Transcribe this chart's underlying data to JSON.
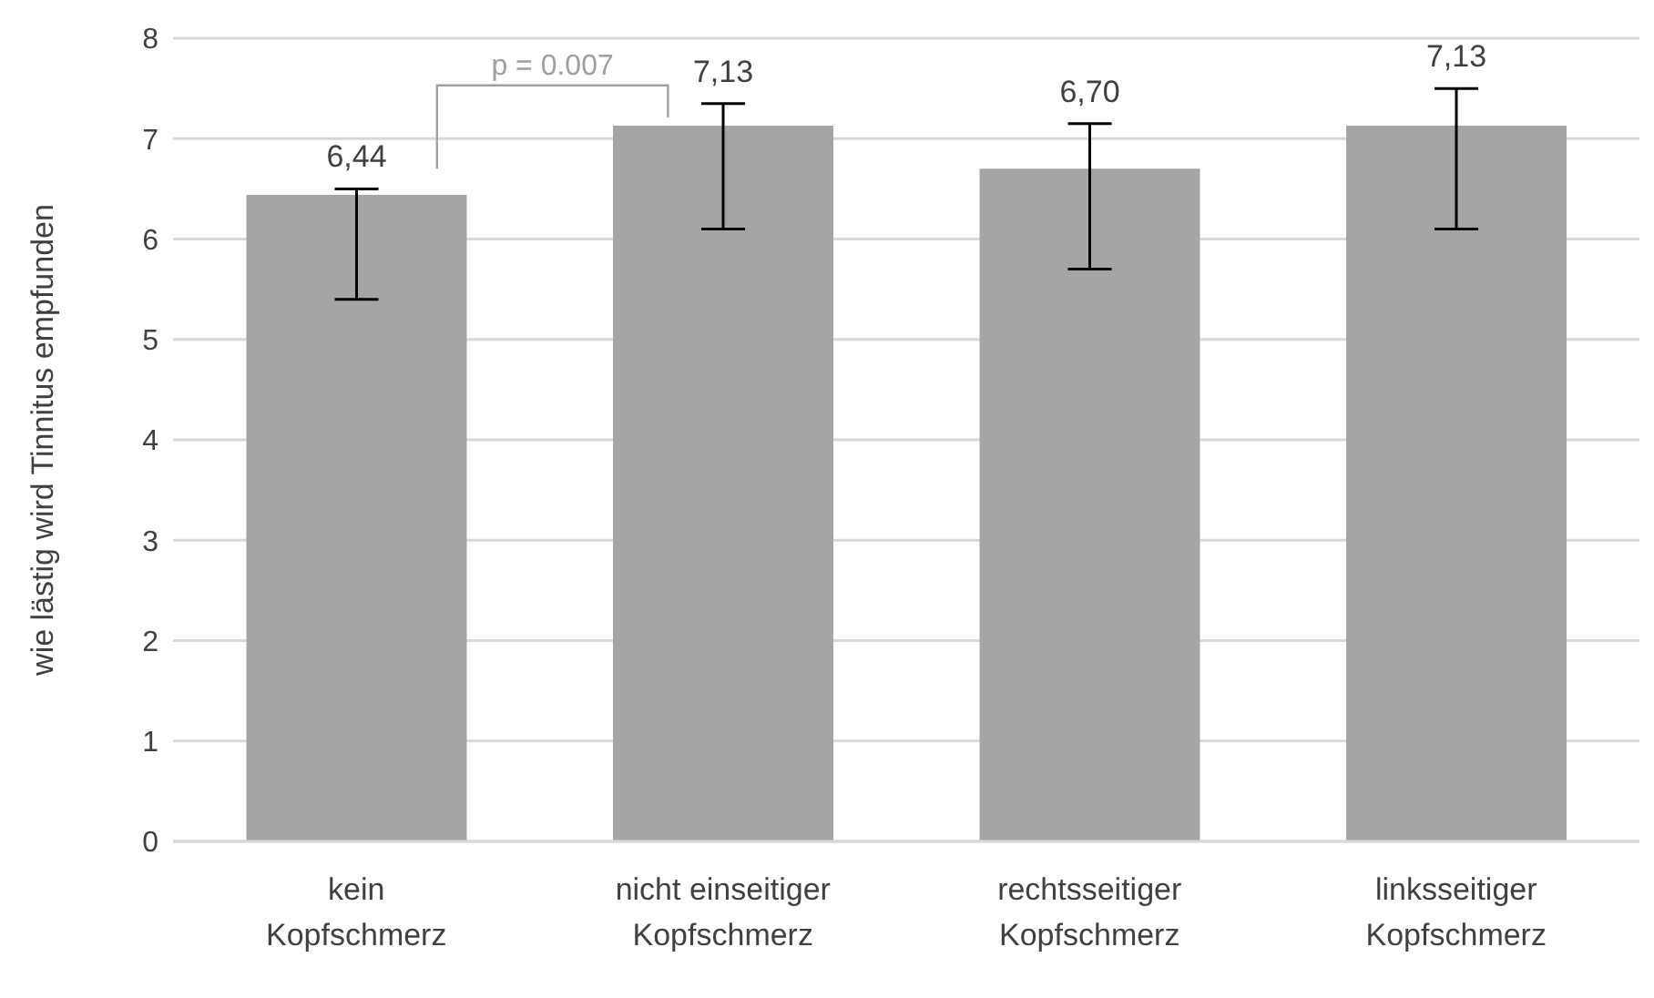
{
  "chart_data": {
    "type": "bar",
    "ylabel": "wie lästig wird Tinnitus empfunden",
    "categories": [
      "kein Kopfschmerz",
      "nicht einseitiger Kopfschmerz",
      "rechtsseitiger Kopfschmerz",
      "linksseitiger Kopfschmerz"
    ],
    "values": [
      6.44,
      7.13,
      6.7,
      7.13
    ],
    "value_labels": [
      "6,44",
      "7,13",
      "6,70",
      "7,13"
    ],
    "errors": [
      [
        5.4,
        6.5
      ],
      [
        6.1,
        7.35
      ],
      [
        5.7,
        7.15
      ],
      [
        6.1,
        7.5
      ]
    ],
    "color": "#a5a5a5",
    "ylim": [
      0,
      8
    ],
    "yticks": [
      0,
      1,
      2,
      3,
      4,
      5,
      6,
      7,
      8
    ],
    "grid": "y",
    "annotations": [
      "p = 0.007"
    ]
  }
}
